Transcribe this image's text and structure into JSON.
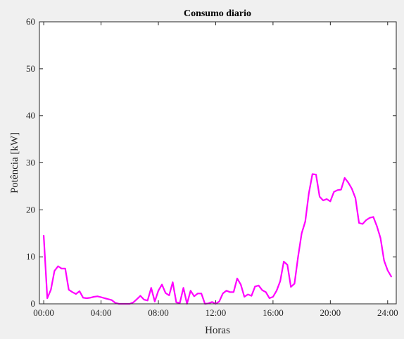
{
  "chart_data": {
    "type": "line",
    "title": "Consumo diario",
    "xlabel": "Horas",
    "ylabel": "Potência [kW]",
    "xlim": [
      -0.3,
      24.6
    ],
    "ylim": [
      0,
      60
    ],
    "x_unit": "hours",
    "xticks": [
      0,
      4,
      8,
      12,
      16,
      20,
      24
    ],
    "xtick_labels": [
      "00:00",
      "04:00",
      "08:00",
      "12:00",
      "16:00",
      "20:00",
      "24:00"
    ],
    "yticks": [
      0,
      10,
      20,
      30,
      40,
      50,
      60
    ],
    "ytick_labels": [
      "0",
      "10",
      "20",
      "30",
      "40",
      "50",
      "60"
    ],
    "grid": false,
    "colors": {
      "line": "#ff00ff",
      "axis": "#262626",
      "plot_bg": "#ffffff",
      "figure_bg": "#f0f0f0"
    },
    "series": [
      {
        "x": [
          0,
          0.25,
          0.5,
          0.75,
          1,
          1.25,
          1.5,
          1.75,
          2,
          2.25,
          2.5,
          2.75,
          3,
          3.25,
          3.5,
          3.75,
          4,
          4.25,
          4.5,
          4.75,
          5,
          5.25,
          5.5,
          5.75,
          6,
          6.25,
          6.5,
          6.75,
          7,
          7.25,
          7.5,
          7.75,
          8,
          8.25,
          8.5,
          8.75,
          9,
          9.25,
          9.5,
          9.75,
          10,
          10.25,
          10.5,
          10.75,
          11,
          11.25,
          11.5,
          11.75,
          12,
          12.25,
          12.5,
          12.75,
          13,
          13.25,
          13.5,
          13.75,
          14,
          14.25,
          14.5,
          14.75,
          15,
          15.25,
          15.5,
          15.75,
          16,
          16.25,
          16.5,
          16.75,
          17,
          17.25,
          17.5,
          17.75,
          18,
          18.25,
          18.5,
          18.75,
          19,
          19.25,
          19.5,
          19.75,
          20,
          20.25,
          20.5,
          20.75,
          21,
          21.25,
          21.5,
          21.75,
          22,
          22.25,
          22.5,
          22.75,
          23,
          23.25,
          23.5,
          23.75,
          24,
          24.25
        ],
        "y": [
          14.5,
          1.2,
          3,
          7,
          8,
          7.5,
          7.5,
          3,
          2.5,
          2.1,
          2.7,
          1.3,
          1.2,
          1.3,
          1.5,
          1.6,
          1.4,
          1.2,
          1,
          0.8,
          0.2,
          0,
          0,
          0,
          0,
          0.3,
          1,
          1.7,
          0.9,
          0.7,
          3.4,
          0.5,
          2.8,
          4.1,
          2.3,
          1.8,
          4.6,
          0.3,
          0.2,
          3.4,
          0,
          2.8,
          1.6,
          2.2,
          2.2,
          0,
          0.1,
          0.4,
          0,
          0.5,
          2.2,
          2.8,
          2.5,
          2.5,
          5.4,
          4.1,
          1.5,
          2,
          1.7,
          3.7,
          3.9,
          2.9,
          2.5,
          1.2,
          1.5,
          2.8,
          4.8,
          9,
          8.3,
          3.6,
          4.3,
          10,
          15,
          17.5,
          23.5,
          27.6,
          27.5,
          22.8,
          22,
          22.3,
          21.8,
          23.8,
          24.2,
          24.3,
          26.8,
          25.8,
          24.5,
          22.5,
          17.2,
          17,
          17.8,
          18.3,
          18.5,
          16.5,
          14,
          9.2,
          7.1,
          5.8
        ]
      }
    ]
  }
}
